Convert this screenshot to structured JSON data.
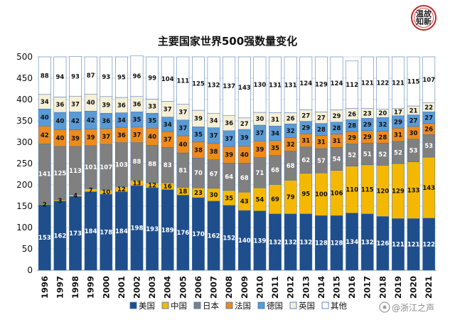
{
  "chart_data": {
    "type": "bar",
    "stacked": true,
    "title": "主要国家世界500强数量变化",
    "categories": [
      "1996",
      "1997",
      "1998",
      "1999",
      "2000",
      "2001",
      "2002",
      "2003",
      "2004",
      "2005",
      "2006",
      "2007",
      "2008",
      "2009",
      "2010",
      "2011",
      "2012",
      "2013",
      "2014",
      "2015",
      "2016",
      "2017",
      "2018",
      "2019",
      "2020",
      "2021"
    ],
    "ylim": [
      0,
      500
    ],
    "yticks": [
      "0",
      "50",
      "100",
      "150",
      "200",
      "250",
      "300",
      "350",
      "400",
      "450",
      "500"
    ],
    "series": [
      {
        "name": "美国",
        "color": "#1f4e8c",
        "label_color": "#ffffff",
        "values": [
          153,
          162,
          173,
          184,
          178,
          184,
          198,
          193,
          189,
          176,
          170,
          162,
          152,
          140,
          139,
          132,
          132,
          132,
          128,
          128,
          134,
          132,
          126,
          121,
          121,
          122
        ]
      },
      {
        "name": "中国",
        "color": "#f5b800",
        "label_color": "#111111",
        "values": [
          2,
          3,
          4,
          7,
          10,
          12,
          13,
          12,
          16,
          18,
          23,
          30,
          35,
          43,
          54,
          69,
          79,
          95,
          100,
          106,
          110,
          115,
          120,
          129,
          133,
          143
        ]
      },
      {
        "name": "日本",
        "color": "#808080",
        "label_color": "#ffffff",
        "values": [
          141,
          125,
          113,
          101,
          107,
          103,
          88,
          88,
          83,
          81,
          70,
          67,
          64,
          68,
          71,
          68,
          68,
          62,
          57,
          54,
          52,
          51,
          52,
          52,
          53,
          53
        ]
      },
      {
        "name": "法国",
        "color": "#ed8b1c",
        "label_color": "#111111",
        "values": [
          42,
          40,
          39,
          39,
          37,
          36,
          37,
          40,
          37,
          40,
          38,
          38,
          39,
          40,
          39,
          35,
          32,
          31,
          31,
          31,
          29,
          29,
          28,
          31,
          30,
          26
        ]
      },
      {
        "name": "德国",
        "color": "#5b9bd5",
        "label_color": "#111111",
        "values": [
          40,
          40,
          42,
          42,
          36,
          34,
          35,
          35,
          34,
          37,
          35,
          37,
          37,
          39,
          37,
          34,
          32,
          29,
          28,
          28,
          28,
          29,
          32,
          29,
          27,
          27
        ]
      },
      {
        "name": "英国",
        "color": "#f6f0d6",
        "label_color": "#111111",
        "values": [
          34,
          36,
          37,
          40,
          39,
          36,
          36,
          33,
          37,
          37,
          39,
          34,
          36,
          27,
          30,
          31,
          26,
          27,
          27,
          29,
          26,
          23,
          20,
          17,
          21,
          22
        ]
      },
      {
        "name": "其他",
        "color": "#ffffff",
        "label_color": "#111111",
        "values": [
          88,
          94,
          93,
          87,
          93,
          95,
          96,
          99,
          104,
          111,
          125,
          132,
          137,
          143,
          130,
          131,
          131,
          124,
          129,
          124,
          112,
          121,
          122,
          121,
          115,
          107
        ]
      }
    ],
    "legend_position": "bottom",
    "grid": true
  },
  "watermark": "@浙江之声",
  "logo": {
    "text": "温故知新",
    "shape": "seal"
  }
}
